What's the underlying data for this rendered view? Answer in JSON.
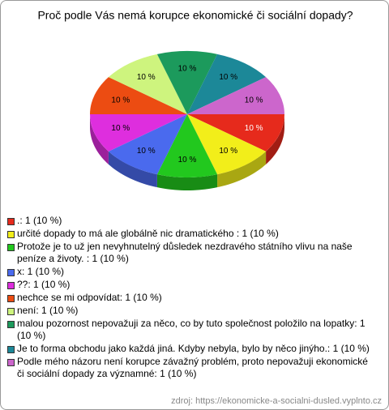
{
  "chart_data": {
    "type": "pie3d",
    "title": "Proč podle Vás nemá korupce ekonomické či sociální dopady?",
    "categories": [
      ".: 1 (10 %)",
      "určité dopady to má ale globálně nic dramatického : 1 (10 %)",
      "Protože je to už jen nevyhnutelný důsledek nezdravého státního vlivu na naše peníze a životy. : 1 (10 %)",
      "x: 1 (10 %)",
      "??: 1 (10 %)",
      "nechce se mi odpovídat: 1 (10 %)",
      "není: 1 (10 %)",
      "malou pozornost nepovažuji za něco, co by tuto společnost položilo na lopatky: 1 (10 %)",
      "Je to forma obchodu jako každá jiná. Kdyby nebyla, bylo by něco jinýho.: 1 (10 %)",
      "Podle mého názoru není korupce závažný problém, proto nepovažuji ekonomické či sociální dopady za významné: 1 (10 %)"
    ],
    "values": [
      10,
      10,
      10,
      10,
      10,
      10,
      10,
      10,
      10,
      10
    ],
    "value_labels": [
      "10 %",
      "10 %",
      "10 %",
      "10 %",
      "10 %",
      "10 %",
      "10 %",
      "10 %",
      "10 %",
      "10 %"
    ],
    "colors": [
      "#e62a1c",
      "#f2ee1a",
      "#22c81e",
      "#4a6aee",
      "#de2ede",
      "#ec4c12",
      "#cef47e",
      "#1c9a5c",
      "#1c8898",
      "#cc66cc"
    ],
    "source": "zdroj: https://ekonomicke-a-socialni-dusled.vyplnto.cz"
  }
}
